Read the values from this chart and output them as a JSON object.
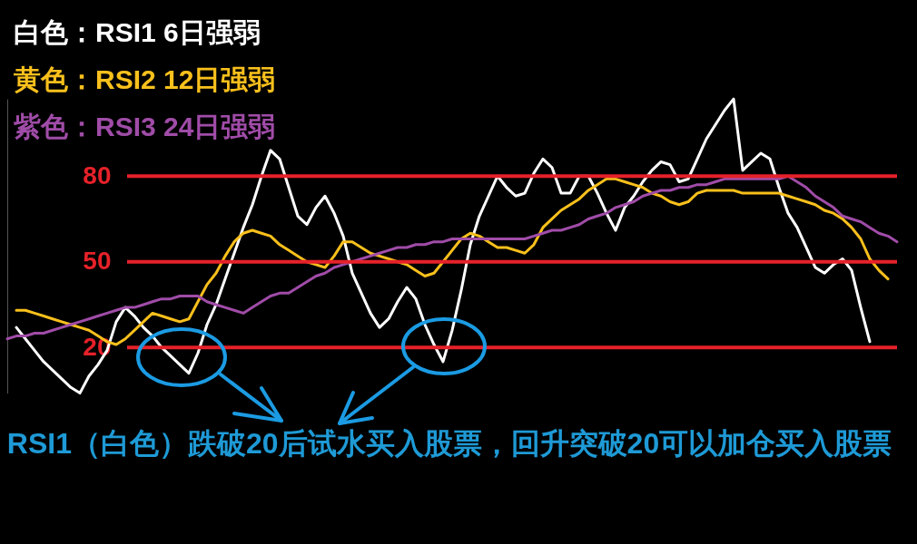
{
  "chart_data": {
    "type": "line",
    "categories": [
      null,
      null,
      null,
      null,
      null,
      null,
      null,
      null,
      null,
      null,
      null,
      null,
      null,
      null,
      null,
      null,
      null,
      null,
      null,
      null,
      null,
      null,
      null,
      null,
      null,
      null,
      null,
      null,
      null,
      null,
      null,
      null,
      null,
      null,
      null,
      null,
      null,
      null,
      null,
      null,
      null,
      null,
      null,
      null,
      null,
      null,
      null,
      null,
      null,
      null,
      null,
      null,
      null,
      null,
      null,
      null,
      null,
      null,
      null,
      null,
      null,
      null,
      null,
      null,
      null,
      null,
      null,
      null,
      null,
      null,
      null,
      null,
      null,
      null,
      null,
      null,
      null,
      null,
      null,
      null,
      null,
      null,
      null,
      null,
      null,
      null,
      null,
      null,
      null,
      null,
      null,
      null,
      null,
      null,
      null,
      null,
      null,
      null,
      null
    ],
    "series": [
      {
        "name": "白色：RSI1 6日强弱",
        "color": "#ffffff",
        "values": [
          null,
          27,
          23,
          19,
          15,
          12,
          9,
          6,
          4,
          10,
          14,
          19,
          29,
          34,
          31,
          27,
          24,
          20,
          17,
          14,
          11,
          18,
          28,
          35,
          44,
          53,
          62,
          70,
          80,
          89,
          86,
          76,
          66,
          63,
          69,
          73,
          67,
          59,
          46,
          39,
          32,
          27,
          30,
          36,
          41,
          37,
          28,
          21,
          15,
          26,
          40,
          56,
          66,
          73,
          80,
          76,
          73,
          74,
          81,
          86,
          83,
          74,
          74,
          80,
          80,
          74,
          67,
          61,
          69,
          73,
          78,
          82,
          85,
          84,
          78,
          79,
          86,
          93,
          98,
          103,
          107,
          82,
          85,
          88,
          86,
          76,
          67,
          62,
          55,
          48,
          46,
          49,
          51,
          47,
          34,
          22,
          null,
          null,
          null
        ]
      },
      {
        "name": "黄色：RSI2 12日强弱",
        "color": "#f9c01c",
        "values": [
          null,
          33,
          33,
          32,
          31,
          30,
          29,
          28,
          27,
          26,
          24,
          22,
          21,
          23,
          26,
          29,
          32,
          31,
          30,
          29,
          30,
          36,
          42,
          46,
          52,
          57,
          60,
          61,
          60,
          59,
          56,
          54,
          52,
          50,
          49,
          48,
          52,
          57,
          57,
          55,
          53,
          52,
          51,
          50,
          49,
          47,
          45,
          46,
          50,
          54,
          58,
          60,
          59,
          57,
          55,
          55,
          54,
          53,
          56,
          62,
          65,
          68,
          70,
          72,
          75,
          77,
          79,
          79,
          78,
          77,
          76,
          74,
          73,
          71,
          70,
          71,
          74,
          75,
          75,
          75,
          75,
          74,
          74,
          74,
          74,
          74,
          73,
          72,
          71,
          70,
          68,
          67,
          65,
          62,
          58,
          51,
          47,
          44,
          null
        ]
      },
      {
        "name": "紫色：RSI3 24日强弱",
        "color": "#a04ca8",
        "values": [
          23,
          24,
          24,
          25,
          25,
          26,
          27,
          28,
          29,
          30,
          31,
          32,
          33,
          34,
          34,
          35,
          36,
          37,
          37,
          38,
          38,
          38,
          36,
          35,
          34,
          33,
          32,
          34,
          36,
          38,
          39,
          39,
          41,
          43,
          45,
          46,
          48,
          49,
          50,
          51,
          52,
          53,
          54,
          55,
          55,
          56,
          56,
          57,
          57,
          58,
          58,
          58,
          58,
          58,
          58,
          58,
          58,
          58,
          59,
          60,
          61,
          61,
          62,
          63,
          65,
          66,
          67,
          69,
          70,
          71,
          73,
          74,
          75,
          75,
          76,
          76,
          77,
          77,
          78,
          79,
          79,
          79,
          79,
          79,
          79,
          79,
          80,
          78,
          76,
          73,
          71,
          69,
          66,
          65,
          64,
          62,
          60,
          59,
          57
        ]
      }
    ],
    "ylim": [
      4,
      107
    ],
    "yticks": [
      20,
      50,
      80
    ],
    "ref_lines": [
      {
        "axis": "y",
        "value": 80,
        "color": "#e62129"
      },
      {
        "axis": "y",
        "value": 50,
        "color": "#e62129"
      },
      {
        "axis": "y",
        "value": 20,
        "color": "#e62129"
      }
    ],
    "legend": "top left",
    "line_style": "solid",
    "annotations": [
      "RSI1（白色）跌破20后试水买入股票，回升突破20可以加仓买入股票"
    ]
  }
}
